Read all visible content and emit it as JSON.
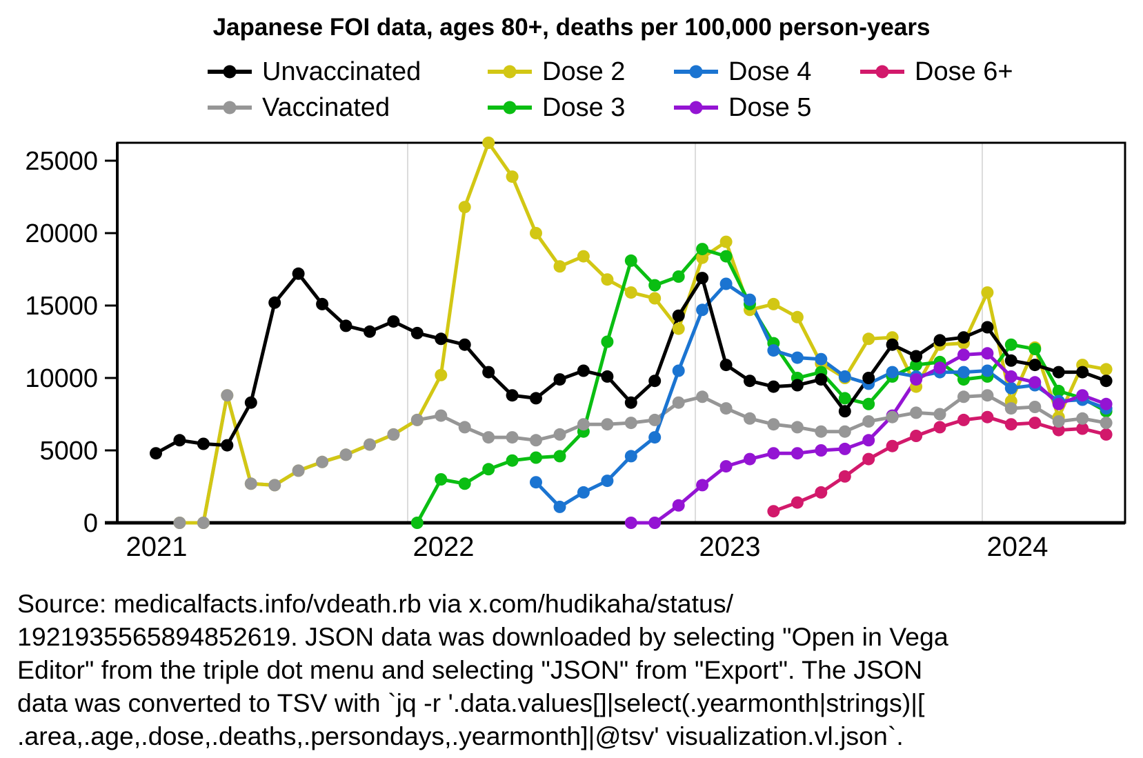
{
  "title": "Japanese FOI data, ages 80+, deaths per 100,000 person-years",
  "legend": {
    "row1": [
      "Unvaccinated",
      "Dose 2",
      "Dose 4",
      "Dose 6+"
    ],
    "row2": [
      "Vaccinated",
      "Dose 3",
      "Dose 5"
    ]
  },
  "source": {
    "lines": [
      "Source: medicalfacts.info/vdeath.rb via x.com/hudikaha/status/",
      "1921935565894852619. JSON data was downloaded by selecting \"Open in Vega",
      "Editor\" from the triple dot menu and selecting \"JSON\" from \"Export\". The JSON",
      "data was converted to TSV with `jq -r '.data.values[]|select(.yearmonth|strings)|[",
      ".area,.age,.dose,.deaths,.persondays,.yearmonth]|@tsv' visualization.vl.json`."
    ]
  },
  "chart_data": {
    "type": "line",
    "title": "Japanese FOI data, ages 80+, deaths per 100,000 person-years",
    "xlabel": "",
    "ylabel": "deaths per 100,000 person-years",
    "ylim": [
      0,
      26240
    ],
    "yticks": [
      0,
      5000,
      10000,
      15000,
      20000,
      25000
    ],
    "ytick_labels": [
      "0",
      "5000",
      "10000",
      "15000",
      "20000",
      "25000"
    ],
    "year_gridlines": [
      "2022",
      "2023",
      "2024"
    ],
    "xtick_labels": [
      "2021",
      "2022",
      "2023",
      "2024"
    ],
    "grid": "vertical-year-lines",
    "legend_position": "top",
    "months": [
      "2021-01",
      "2021-02",
      "2021-03",
      "2021-04",
      "2021-05",
      "2021-06",
      "2021-07",
      "2021-08",
      "2021-09",
      "2021-10",
      "2021-11",
      "2021-12",
      "2022-01",
      "2022-02",
      "2022-03",
      "2022-04",
      "2022-05",
      "2022-06",
      "2022-07",
      "2022-08",
      "2022-09",
      "2022-10",
      "2022-11",
      "2022-12",
      "2023-01",
      "2023-02",
      "2023-03",
      "2023-04",
      "2023-05",
      "2023-06",
      "2023-07",
      "2023-08",
      "2023-09",
      "2023-10",
      "2023-11",
      "2023-12",
      "2024-01",
      "2024-02",
      "2024-03",
      "2024-04",
      "2024-05"
    ],
    "series": [
      {
        "name": "Unvaccinated",
        "color": "#000000",
        "values": [
          4800,
          5700,
          5450,
          5350,
          8300,
          15200,
          17200,
          15100,
          13600,
          13200,
          13900,
          13100,
          12700,
          12300,
          10400,
          8800,
          8600,
          9900,
          10500,
          10100,
          8300,
          9800,
          14300,
          16900,
          10900,
          9800,
          9400,
          9500,
          9900,
          7700,
          10000,
          12300,
          11500,
          12600,
          12800,
          13500,
          11200,
          10900,
          10400,
          10400,
          9800
        ]
      },
      {
        "name": "Vaccinated",
        "color": "#969696",
        "values": [
          null,
          0,
          0,
          8800,
          2700,
          2600,
          3600,
          4200,
          4700,
          5400,
          6100,
          7100,
          7400,
          6600,
          5900,
          5900,
          5700,
          6100,
          6800,
          6800,
          6900,
          7100,
          8300,
          8700,
          7900,
          7200,
          6800,
          6600,
          6300,
          6300,
          7000,
          7300,
          7600,
          7500,
          8700,
          8800,
          7900,
          8000,
          7000,
          7200,
          6900
        ]
      },
      {
        "name": "Dose 2",
        "color": "#d2c714",
        "values": [
          null,
          0,
          0,
          8800,
          2700,
          2600,
          3600,
          4200,
          4700,
          5400,
          6100,
          7100,
          10200,
          21800,
          26240,
          23900,
          20000,
          17700,
          18400,
          16800,
          15900,
          15500,
          13400,
          18300,
          19400,
          14700,
          15100,
          14200,
          11000,
          10000,
          12700,
          12800,
          9400,
          12300,
          12400,
          15900,
          8400,
          12100,
          7300,
          10900,
          10600
        ]
      },
      {
        "name": "Dose 3",
        "color": "#0abe12",
        "values": [
          null,
          null,
          null,
          null,
          null,
          null,
          null,
          null,
          null,
          null,
          null,
          0,
          3000,
          2700,
          3700,
          4300,
          4500,
          4600,
          6300,
          12500,
          18100,
          16400,
          17000,
          18900,
          18400,
          15100,
          12400,
          10000,
          10400,
          8600,
          8200,
          10100,
          10900,
          11100,
          9900,
          10100,
          12300,
          12000,
          9100,
          8600,
          7700
        ]
      },
      {
        "name": "Dose 4",
        "color": "#1b74d1",
        "values": [
          null,
          null,
          null,
          null,
          null,
          null,
          null,
          null,
          null,
          null,
          null,
          null,
          null,
          null,
          null,
          null,
          2800,
          1100,
          2100,
          2900,
          4600,
          5900,
          10500,
          14700,
          16500,
          15400,
          11900,
          11400,
          11300,
          10100,
          9600,
          10400,
          10100,
          10400,
          10400,
          10500,
          9300,
          9500,
          8400,
          8500,
          7900
        ]
      },
      {
        "name": "Dose 5",
        "color": "#9414d3",
        "values": [
          null,
          null,
          null,
          null,
          null,
          null,
          null,
          null,
          null,
          null,
          null,
          null,
          null,
          null,
          null,
          null,
          null,
          null,
          null,
          null,
          0,
          0,
          1200,
          2600,
          3900,
          4400,
          4800,
          4800,
          5000,
          5100,
          5700,
          7400,
          9900,
          10700,
          11600,
          11700,
          10100,
          9700,
          8200,
          8800,
          8200
        ]
      },
      {
        "name": "Dose 6+",
        "color": "#d2196b",
        "values": [
          null,
          null,
          null,
          null,
          null,
          null,
          null,
          null,
          null,
          null,
          null,
          null,
          null,
          null,
          null,
          null,
          null,
          null,
          null,
          null,
          null,
          null,
          null,
          null,
          null,
          null,
          800,
          1400,
          2100,
          3200,
          4400,
          5300,
          6000,
          6600,
          7100,
          7300,
          6800,
          6900,
          6400,
          6500,
          6100
        ]
      }
    ]
  }
}
